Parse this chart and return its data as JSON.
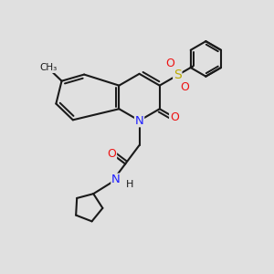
{
  "bg_color": "#e0e0e0",
  "bond_color": "#1a1a1a",
  "bond_width": 1.5,
  "atom_colors": {
    "N": "#2020ff",
    "O": "#ee1111",
    "S": "#bbaa00",
    "C": "#1a1a1a"
  },
  "figsize": [
    3.0,
    3.0
  ],
  "dpi": 100,
  "bl": 0.5
}
